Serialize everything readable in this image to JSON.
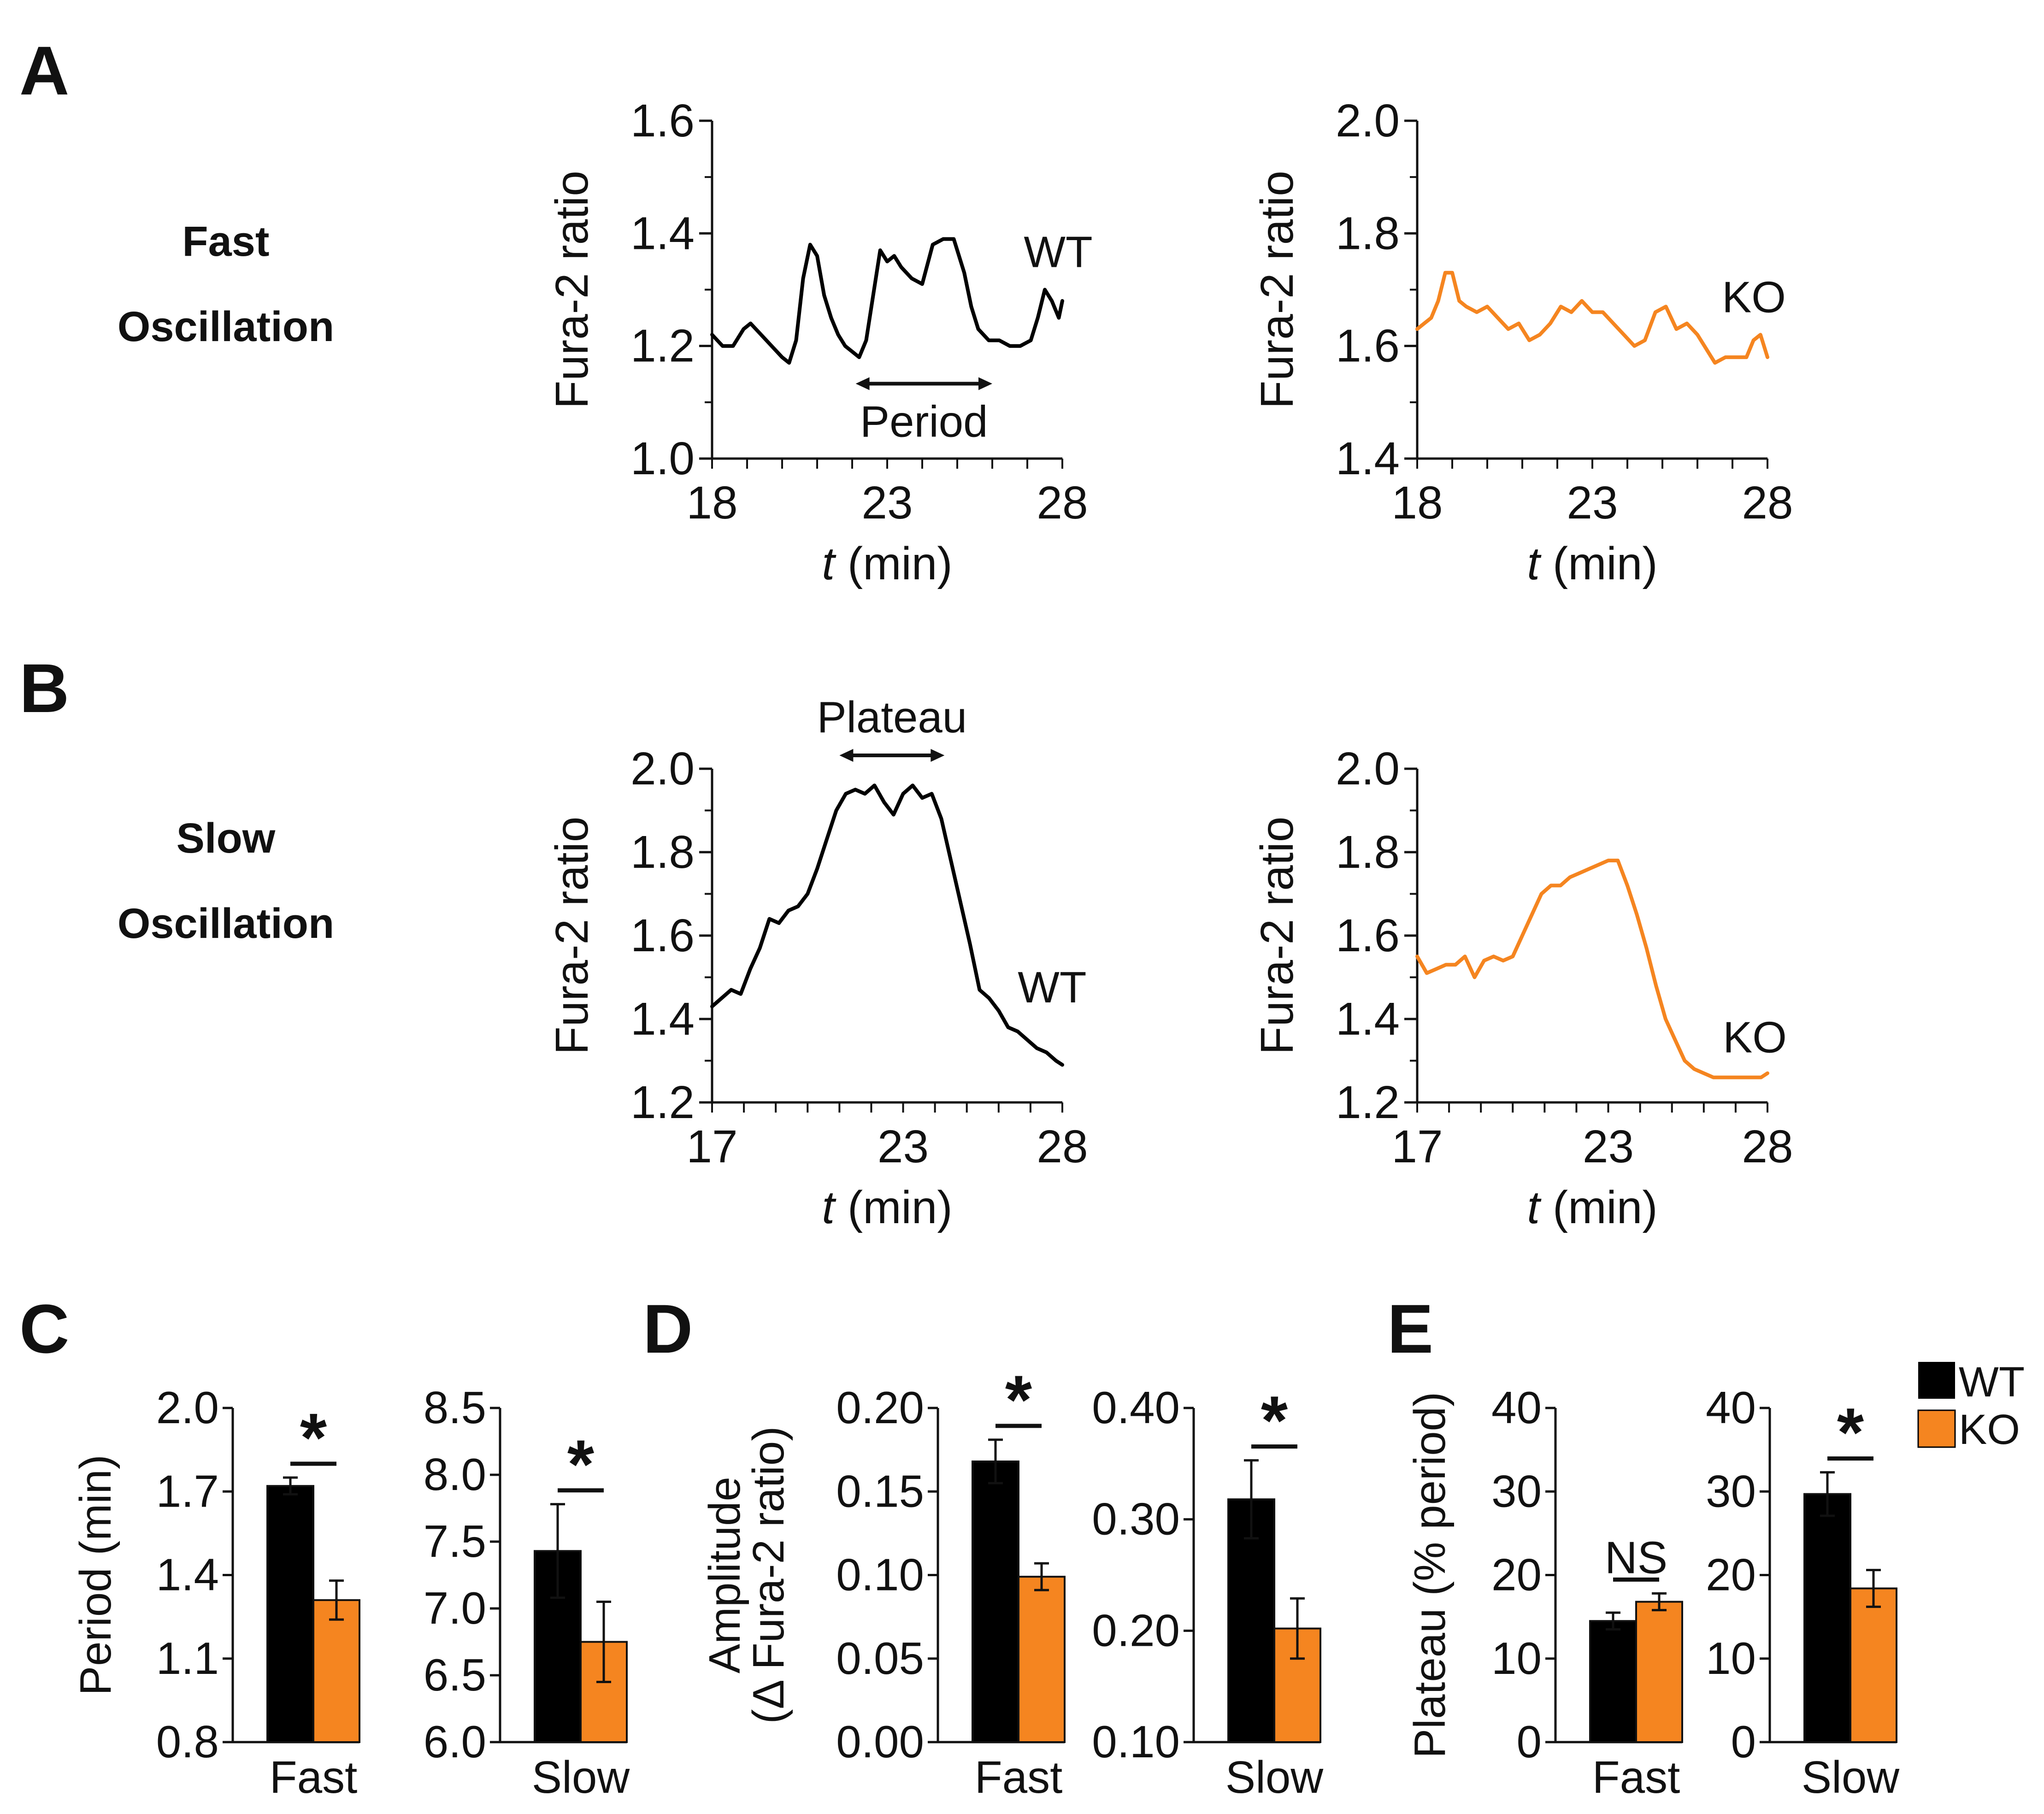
{
  "figure": {
    "panel_labels": [
      "A",
      "B",
      "C",
      "D",
      "E"
    ],
    "row_labels": {
      "A": [
        "Fast",
        "Oscillation"
      ],
      "B": [
        "Slow",
        "Oscillation"
      ]
    },
    "legend": {
      "wt": "WT",
      "ko": "KO"
    },
    "colors": {
      "wt": "#000000",
      "ko": "#f58520"
    }
  },
  "chart_data": [
    {
      "id": "A-WT",
      "type": "line",
      "panel": "A",
      "xlabel_italic": "t",
      "xlabel_unit": " (min)",
      "ylabel": "Fura-2 ratio",
      "xlim": [
        18,
        28
      ],
      "xticks": [
        18,
        23,
        28
      ],
      "ylim": [
        1.0,
        1.6
      ],
      "yticks": [
        "1.0",
        "1.2",
        "1.4",
        "1.6"
      ],
      "series": [
        {
          "name": "WT",
          "color": "#000000",
          "x": [
            18.0,
            18.3,
            18.6,
            18.9,
            19.1,
            19.4,
            19.7,
            20.0,
            20.2,
            20.4,
            20.6,
            20.8,
            21.0,
            21.2,
            21.4,
            21.6,
            21.8,
            22.0,
            22.2,
            22.4,
            22.6,
            22.8,
            23.0,
            23.2,
            23.4,
            23.7,
            24.0,
            24.3,
            24.6,
            24.9,
            25.2,
            25.4,
            25.6,
            25.9,
            26.2,
            26.5,
            26.8,
            27.1,
            27.3,
            27.5,
            27.7,
            27.9,
            28.0
          ],
          "y": [
            1.22,
            1.2,
            1.2,
            1.23,
            1.24,
            1.22,
            1.2,
            1.18,
            1.17,
            1.21,
            1.32,
            1.38,
            1.36,
            1.29,
            1.25,
            1.22,
            1.2,
            1.19,
            1.18,
            1.21,
            1.29,
            1.37,
            1.35,
            1.36,
            1.34,
            1.32,
            1.31,
            1.38,
            1.39,
            1.39,
            1.33,
            1.27,
            1.23,
            1.21,
            1.21,
            1.2,
            1.2,
            1.21,
            1.25,
            1.3,
            1.28,
            1.25,
            1.28
          ]
        }
      ],
      "annotation": {
        "text": "Period",
        "from": 22.1,
        "to": 26.0,
        "y": 1.133
      },
      "series_label": {
        "text": "WT",
        "x": 26.9,
        "y": 1.34
      }
    },
    {
      "id": "A-KO",
      "type": "line",
      "panel": "A",
      "xlabel_italic": "t",
      "xlabel_unit": " (min)",
      "ylabel": "Fura-2 ratio",
      "xlim": [
        18,
        28
      ],
      "xticks": [
        18,
        23,
        28
      ],
      "ylim": [
        1.4,
        2.0
      ],
      "yticks": [
        "1.4",
        "1.6",
        "1.8",
        "2.0"
      ],
      "series": [
        {
          "name": "KO",
          "color": "#f58520",
          "x": [
            18.0,
            18.2,
            18.4,
            18.6,
            18.8,
            19.0,
            19.2,
            19.4,
            19.7,
            20.0,
            20.3,
            20.6,
            20.9,
            21.2,
            21.5,
            21.8,
            22.1,
            22.4,
            22.7,
            23.0,
            23.3,
            23.6,
            23.9,
            24.2,
            24.5,
            24.8,
            25.1,
            25.4,
            25.7,
            26.0,
            26.3,
            26.5,
            26.8,
            27.1,
            27.4,
            27.6,
            27.8,
            28.0
          ],
          "y": [
            1.63,
            1.64,
            1.65,
            1.68,
            1.73,
            1.73,
            1.68,
            1.67,
            1.66,
            1.67,
            1.65,
            1.63,
            1.64,
            1.61,
            1.62,
            1.64,
            1.67,
            1.66,
            1.68,
            1.66,
            1.66,
            1.64,
            1.62,
            1.6,
            1.61,
            1.66,
            1.67,
            1.63,
            1.64,
            1.62,
            1.59,
            1.57,
            1.58,
            1.58,
            1.58,
            1.61,
            1.62,
            1.58
          ]
        }
      ],
      "series_label": {
        "text": "KO",
        "x": 26.7,
        "y": 1.66
      }
    },
    {
      "id": "B-WT",
      "type": "line",
      "panel": "B",
      "xlabel_italic": "t",
      "xlabel_unit": " (min)",
      "ylabel": "Fura-2 ratio",
      "xlim": [
        17,
        28
      ],
      "xticks": [
        17,
        23,
        28
      ],
      "ylim": [
        1.2,
        2.0
      ],
      "yticks": [
        "1.2",
        "1.4",
        "1.6",
        "1.8",
        "2.0"
      ],
      "series": [
        {
          "name": "WT",
          "color": "#000000",
          "x": [
            17.0,
            17.3,
            17.6,
            17.9,
            18.2,
            18.5,
            18.8,
            19.1,
            19.4,
            19.7,
            20.0,
            20.3,
            20.6,
            20.9,
            21.2,
            21.5,
            21.8,
            22.1,
            22.4,
            22.7,
            23.0,
            23.3,
            23.6,
            23.9,
            24.2,
            24.5,
            24.8,
            25.1,
            25.4,
            25.7,
            26.0,
            26.3,
            26.6,
            26.9,
            27.2,
            27.5,
            27.8,
            28.0
          ],
          "y": [
            1.43,
            1.45,
            1.47,
            1.46,
            1.52,
            1.57,
            1.64,
            1.63,
            1.66,
            1.67,
            1.7,
            1.76,
            1.83,
            1.9,
            1.94,
            1.95,
            1.94,
            1.96,
            1.92,
            1.89,
            1.94,
            1.96,
            1.93,
            1.94,
            1.88,
            1.78,
            1.68,
            1.58,
            1.47,
            1.45,
            1.42,
            1.38,
            1.37,
            1.35,
            1.33,
            1.32,
            1.3,
            1.29
          ]
        }
      ],
      "annotation": {
        "text": "Plateau",
        "from": 21.0,
        "to": 24.3,
        "y": 2.032
      },
      "series_label": {
        "text": "WT",
        "x": 26.6,
        "y": 1.44
      }
    },
    {
      "id": "B-KO",
      "type": "line",
      "panel": "B",
      "xlabel_italic": "t",
      "xlabel_unit": " (min)",
      "ylabel": "Fura-2 ratio",
      "xlim": [
        17,
        28
      ],
      "xticks": [
        17,
        23,
        28
      ],
      "ylim": [
        1.2,
        2.0
      ],
      "yticks": [
        "1.2",
        "1.4",
        "1.6",
        "1.8",
        "2.0"
      ],
      "series": [
        {
          "name": "KO",
          "color": "#f58520",
          "x": [
            17.0,
            17.3,
            17.6,
            17.9,
            18.2,
            18.5,
            18.8,
            19.1,
            19.4,
            19.7,
            20.0,
            20.3,
            20.6,
            20.9,
            21.2,
            21.5,
            21.8,
            22.1,
            22.4,
            22.7,
            23.0,
            23.3,
            23.6,
            23.9,
            24.2,
            24.5,
            24.8,
            25.1,
            25.4,
            25.7,
            26.0,
            26.3,
            26.6,
            26.9,
            27.2,
            27.5,
            27.8,
            28.0
          ],
          "y": [
            1.55,
            1.51,
            1.52,
            1.53,
            1.53,
            1.55,
            1.5,
            1.54,
            1.55,
            1.54,
            1.55,
            1.6,
            1.65,
            1.7,
            1.72,
            1.72,
            1.74,
            1.75,
            1.76,
            1.77,
            1.78,
            1.78,
            1.72,
            1.65,
            1.57,
            1.48,
            1.4,
            1.35,
            1.3,
            1.28,
            1.27,
            1.26,
            1.26,
            1.26,
            1.26,
            1.26,
            1.26,
            1.27
          ]
        }
      ],
      "series_label": {
        "text": "KO",
        "x": 26.6,
        "y": 1.32
      }
    },
    {
      "id": "C-Fast",
      "type": "bar",
      "panel": "C",
      "ylabel": "Period (min)",
      "category": "Fast",
      "ylim": [
        0.8,
        2.0
      ],
      "yticks": [
        "0.8",
        "1.1",
        "1.4",
        "1.7",
        "2.0"
      ],
      "series": [
        {
          "name": "WT",
          "color": "#000000",
          "value": 1.72,
          "error": 0.03
        },
        {
          "name": "KO",
          "color": "#f58520",
          "value": 1.31,
          "error": 0.07
        }
      ],
      "significance": "*"
    },
    {
      "id": "C-Slow",
      "type": "bar",
      "panel": "C",
      "ylabel": "",
      "category": "Slow",
      "ylim": [
        6.0,
        8.5
      ],
      "yticks": [
        "6.0",
        "6.5",
        "7.0",
        "7.5",
        "8.0",
        "8.5"
      ],
      "series": [
        {
          "name": "WT",
          "color": "#000000",
          "value": 7.43,
          "error": 0.35
        },
        {
          "name": "KO",
          "color": "#f58520",
          "value": 6.75,
          "error": 0.3
        }
      ],
      "significance": "*"
    },
    {
      "id": "D-Fast",
      "type": "bar",
      "panel": "D",
      "ylabel": [
        "Amplitude",
        "(Δ Fura-2 ratio)"
      ],
      "category": "Fast",
      "ylim": [
        0.0,
        0.2
      ],
      "yticks": [
        "0.00",
        "0.05",
        "0.10",
        "0.15",
        "0.20"
      ],
      "series": [
        {
          "name": "WT",
          "color": "#000000",
          "value": 0.168,
          "error": 0.013
        },
        {
          "name": "KO",
          "color": "#f58520",
          "value": 0.099,
          "error": 0.008
        }
      ],
      "significance": "*"
    },
    {
      "id": "D-Slow",
      "type": "bar",
      "panel": "D",
      "ylabel": "",
      "category": "Slow",
      "ylim": [
        0.1,
        0.4
      ],
      "yticks": [
        "0.10",
        "0.20",
        "0.30",
        "0.40"
      ],
      "series": [
        {
          "name": "WT",
          "color": "#000000",
          "value": 0.318,
          "error": 0.035
        },
        {
          "name": "KO",
          "color": "#f58520",
          "value": 0.202,
          "error": 0.027
        }
      ],
      "significance": "*"
    },
    {
      "id": "E-Fast",
      "type": "bar",
      "panel": "E",
      "ylabel": "Plateau (% period)",
      "category": "Fast",
      "ylim": [
        0,
        40
      ],
      "yticks": [
        "0",
        "10",
        "20",
        "30",
        "40"
      ],
      "series": [
        {
          "name": "WT",
          "color": "#000000",
          "value": 14.5,
          "error": 1.0
        },
        {
          "name": "KO",
          "color": "#f58520",
          "value": 16.8,
          "error": 1.0
        }
      ],
      "significance": "NS"
    },
    {
      "id": "E-Slow",
      "type": "bar",
      "panel": "E",
      "ylabel": "",
      "category": "Slow",
      "ylim": [
        0,
        40
      ],
      "yticks": [
        "0",
        "10",
        "20",
        "30",
        "40"
      ],
      "series": [
        {
          "name": "WT",
          "color": "#000000",
          "value": 29.7,
          "error": 2.6
        },
        {
          "name": "KO",
          "color": "#f58520",
          "value": 18.4,
          "error": 2.2
        }
      ],
      "significance": "*"
    }
  ]
}
